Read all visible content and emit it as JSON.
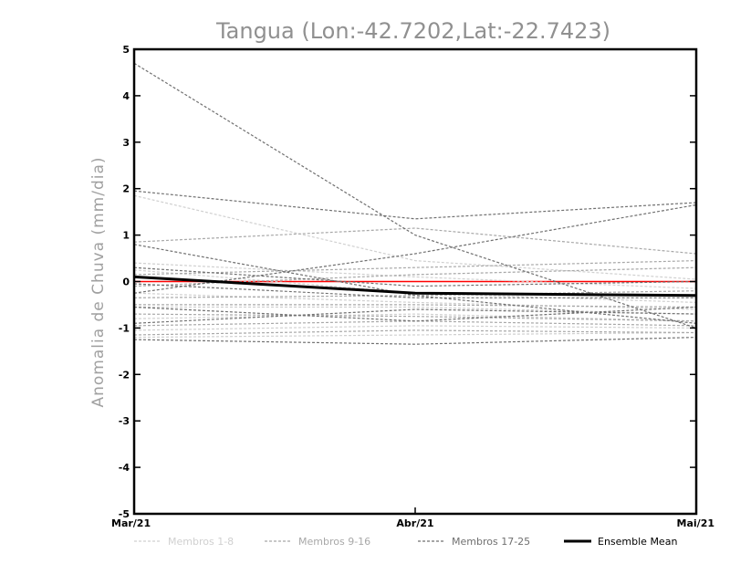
{
  "chart_data": {
    "type": "line",
    "title": "Tangua (Lon:-42.7202,Lat:-22.7423)",
    "xlabel": "",
    "ylabel": "Anomalia de Chuva (mm/dia)",
    "categories": [
      "Mar/21",
      "Abr/21",
      "Mai/21"
    ],
    "ylim": [
      -5,
      5
    ],
    "yticks": [
      "5",
      "4",
      "3",
      "2",
      "1",
      "0",
      "-1",
      "-2",
      "-3",
      "-4",
      "-5"
    ],
    "grid": false,
    "legend_position": "bottom",
    "zero_line_color": "#ff0000",
    "series_groups": [
      {
        "name": "Membros 1-8",
        "color": "#d0d0d0",
        "style": "dashed",
        "series": [
          {
            "values": [
              1.85,
              0.45,
              0.05
            ]
          },
          {
            "values": [
              0.4,
              0.1,
              -0.15
            ]
          },
          {
            "values": [
              0.25,
              -0.25,
              -0.45
            ]
          },
          {
            "values": [
              -0.25,
              -0.45,
              -0.6
            ]
          },
          {
            "values": [
              -0.55,
              -0.55,
              -0.7
            ]
          },
          {
            "values": [
              -0.8,
              -0.7,
              -0.85
            ]
          },
          {
            "values": [
              -1.05,
              -0.95,
              -1.0
            ]
          },
          {
            "values": [
              -1.2,
              -1.15,
              -1.1
            ]
          }
        ]
      },
      {
        "name": "Membros 9-16",
        "color": "#a8a8a8",
        "style": "dashed",
        "series": [
          {
            "values": [
              0.85,
              1.15,
              0.6
            ]
          },
          {
            "values": [
              0.15,
              0.3,
              0.45
            ]
          },
          {
            "values": [
              -0.1,
              0.15,
              0.3
            ]
          },
          {
            "values": [
              -0.35,
              -0.3,
              -0.2
            ]
          },
          {
            "values": [
              -0.5,
              -0.5,
              -0.55
            ]
          },
          {
            "values": [
              -0.7,
              -0.75,
              -0.85
            ]
          },
          {
            "values": [
              -0.95,
              -0.85,
              -0.95
            ]
          },
          {
            "values": [
              -1.15,
              -1.05,
              -1.1
            ]
          }
        ]
      },
      {
        "name": "Membros 17-25",
        "color": "#707070",
        "style": "dashed",
        "series": [
          {
            "values": [
              4.7,
              1.0,
              -1.0
            ]
          },
          {
            "values": [
              1.95,
              1.35,
              1.7
            ]
          },
          {
            "values": [
              -0.25,
              0.6,
              1.65
            ]
          },
          {
            "values": [
              0.8,
              -0.3,
              -0.9
            ]
          },
          {
            "values": [
              0.3,
              -0.1,
              0.0
            ]
          },
          {
            "values": [
              -0.05,
              -0.35,
              -0.35
            ]
          },
          {
            "values": [
              -0.55,
              -0.85,
              -0.55
            ]
          },
          {
            "values": [
              -0.9,
              -0.6,
              -0.7
            ]
          },
          {
            "values": [
              -1.25,
              -1.35,
              -1.2
            ]
          }
        ]
      }
    ],
    "ensemble_mean": {
      "name": "Ensemble Mean",
      "color": "#000000",
      "values": [
        0.1,
        -0.25,
        -0.3
      ]
    }
  }
}
